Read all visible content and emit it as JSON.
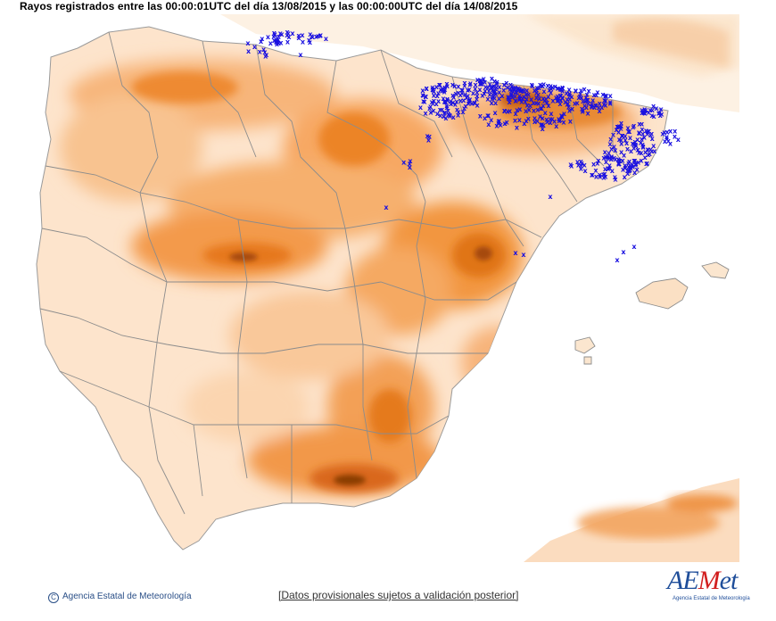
{
  "header": {
    "title": "Rayos registrados entre las 00:00:01UTC del día 13/08/2015 y las 00:00:00UTC del día 14/08/2015"
  },
  "map": {
    "region": "Península Ibérica y Baleares",
    "lightning_marker": "x",
    "colors": {
      "sea": "#ffffff",
      "land_low": "#fde7d1",
      "land_mid": "#f9c08c",
      "land_high": "#f08a2c",
      "land_peak": "#8a3c06",
      "borders": "#8c8c8c",
      "lightning": "#1a10e0"
    }
  },
  "footer": {
    "copyright_symbol": "C",
    "agency": "Agencia Estatal de Meteorología",
    "disclaimer": "[Datos provisionales sujetos a validación posterior]"
  },
  "logo": {
    "brand_a": "AE",
    "brand_m": "M",
    "brand_b": "et",
    "subtitle": "Agencia Estatal de Meteorología"
  }
}
